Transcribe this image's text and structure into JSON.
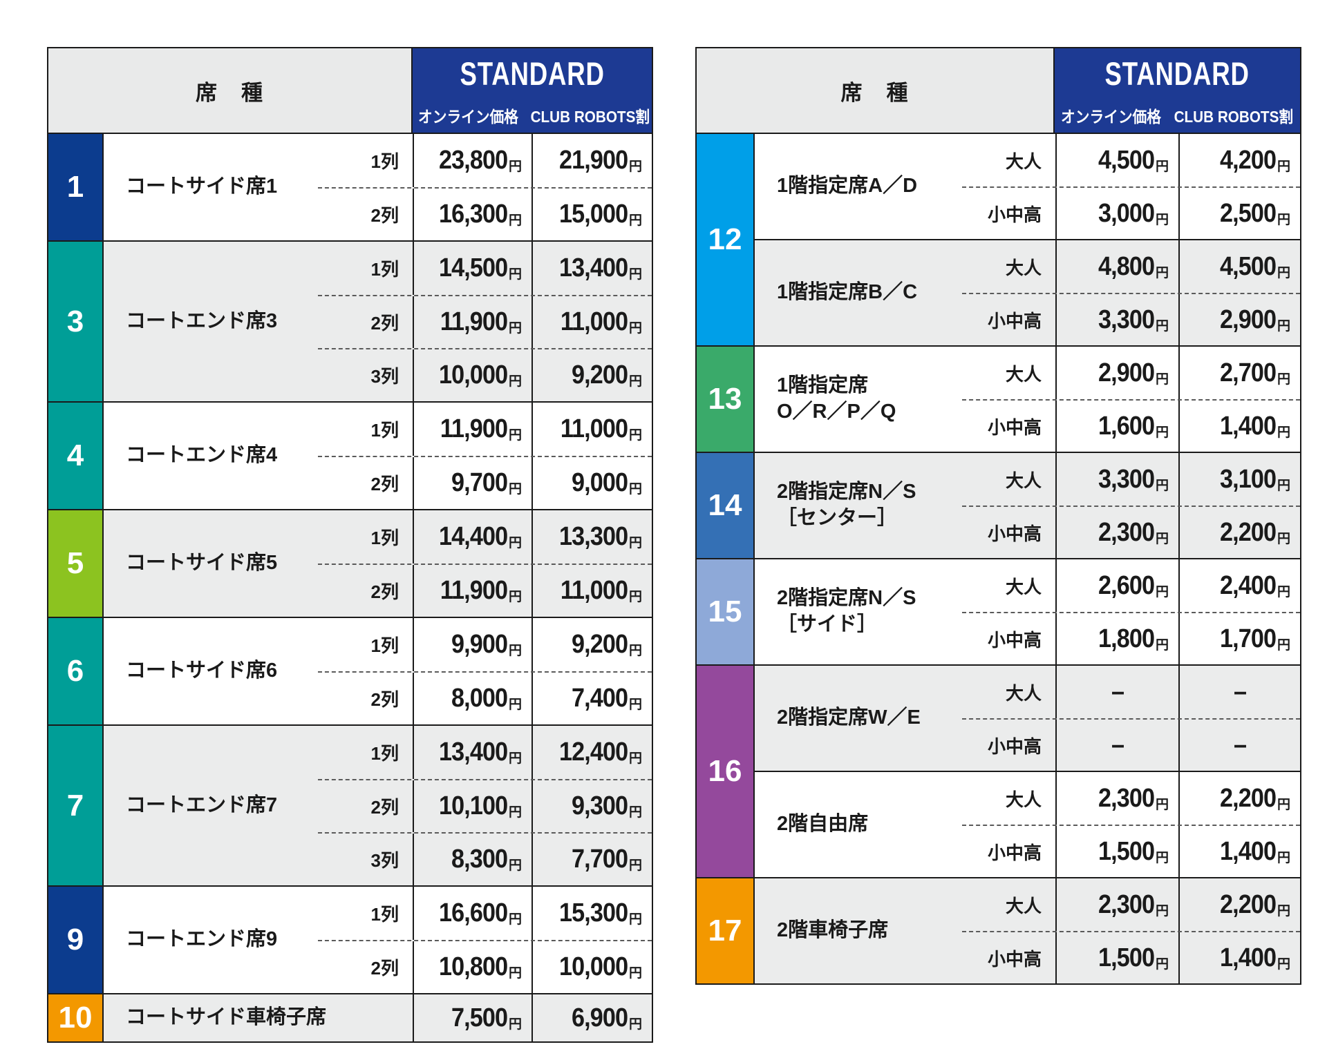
{
  "header": {
    "seat_type": "席　種",
    "plan": "STANDARD",
    "online": "オンライン価格",
    "club": "CLUB ROBOTS割",
    "bg": "#1d3a93"
  },
  "left": {
    "groups": [
      {
        "no": "1",
        "color": "#0c3c8e",
        "sections": [
          {
            "name": "コートサイド席1",
            "bg": "#ffffff",
            "rows": [
              {
                "label": "1列",
                "ov": "23,800",
                "ou": "円",
                "cv": "21,900",
                "cu": "円"
              },
              {
                "label": "2列",
                "ov": "16,300",
                "ou": "円",
                "cv": "15,000",
                "cu": "円"
              }
            ]
          }
        ]
      },
      {
        "no": "3",
        "color": "#009e97",
        "sections": [
          {
            "name": "コートエンド席3",
            "bg": "#ebecec",
            "rows": [
              {
                "label": "1列",
                "ov": "14,500",
                "ou": "円",
                "cv": "13,400",
                "cu": "円"
              },
              {
                "label": "2列",
                "ov": "11,900",
                "ou": "円",
                "cv": "11,000",
                "cu": "円"
              },
              {
                "label": "3列",
                "ov": "10,000",
                "ou": "円",
                "cv": "9,200",
                "cu": "円"
              }
            ]
          }
        ]
      },
      {
        "no": "4",
        "color": "#009e97",
        "sections": [
          {
            "name": "コートエンド席4",
            "bg": "#ffffff",
            "rows": [
              {
                "label": "1列",
                "ov": "11,900",
                "ou": "円",
                "cv": "11,000",
                "cu": "円"
              },
              {
                "label": "2列",
                "ov": "9,700",
                "ou": "円",
                "cv": "9,000",
                "cu": "円"
              }
            ]
          }
        ]
      },
      {
        "no": "5",
        "color": "#8cc320",
        "sections": [
          {
            "name": "コートサイド席5",
            "bg": "#ebecec",
            "rows": [
              {
                "label": "1列",
                "ov": "14,400",
                "ou": "円",
                "cv": "13,300",
                "cu": "円"
              },
              {
                "label": "2列",
                "ov": "11,900",
                "ou": "円",
                "cv": "11,000",
                "cu": "円"
              }
            ]
          }
        ]
      },
      {
        "no": "6",
        "color": "#009e97",
        "sections": [
          {
            "name": "コートサイド席6",
            "bg": "#ffffff",
            "rows": [
              {
                "label": "1列",
                "ov": "9,900",
                "ou": "円",
                "cv": "9,200",
                "cu": "円"
              },
              {
                "label": "2列",
                "ov": "8,000",
                "ou": "円",
                "cv": "7,400",
                "cu": "円"
              }
            ]
          }
        ]
      },
      {
        "no": "7",
        "color": "#009e97",
        "sections": [
          {
            "name": "コートエンド席7",
            "bg": "#ebecec",
            "rows": [
              {
                "label": "1列",
                "ov": "13,400",
                "ou": "円",
                "cv": "12,400",
                "cu": "円"
              },
              {
                "label": "2列",
                "ov": "10,100",
                "ou": "円",
                "cv": "9,300",
                "cu": "円"
              },
              {
                "label": "3列",
                "ov": "8,300",
                "ou": "円",
                "cv": "7,700",
                "cu": "円"
              }
            ]
          }
        ]
      },
      {
        "no": "9",
        "color": "#0c3c8e",
        "sections": [
          {
            "name": "コートエンド席9",
            "bg": "#ffffff",
            "rows": [
              {
                "label": "1列",
                "ov": "16,600",
                "ou": "円",
                "cv": "15,300",
                "cu": "円"
              },
              {
                "label": "2列",
                "ov": "10,800",
                "ou": "円",
                "cv": "10,000",
                "cu": "円"
              }
            ]
          }
        ]
      },
      {
        "no": "10",
        "color": "#f39800",
        "sections": [
          {
            "name": "コートサイド車椅子席",
            "bg": "#ebecec",
            "rows": [
              {
                "label": "",
                "ov": "7,500",
                "ou": "円",
                "cv": "6,900",
                "cu": "円"
              }
            ]
          }
        ]
      }
    ]
  },
  "right": {
    "groups": [
      {
        "no": "12",
        "color": "#009fe8",
        "sections": [
          {
            "name": "1階指定席A／D",
            "bg": "#ffffff",
            "rows": [
              {
                "label": "大人",
                "ov": "4,500",
                "ou": "円",
                "cv": "4,200",
                "cu": "円"
              },
              {
                "label": "小中高",
                "ov": "3,000",
                "ou": "円",
                "cv": "2,500",
                "cu": "円"
              }
            ]
          },
          {
            "name": "1階指定席B／C",
            "bg": "#ebecec",
            "rows": [
              {
                "label": "大人",
                "ov": "4,800",
                "ou": "円",
                "cv": "4,500",
                "cu": "円"
              },
              {
                "label": "小中高",
                "ov": "3,300",
                "ou": "円",
                "cv": "2,900",
                "cu": "円"
              }
            ]
          }
        ]
      },
      {
        "no": "13",
        "color": "#3aaa6a",
        "sections": [
          {
            "name": "1階指定席",
            "name2": "O／R／P／Q",
            "bg": "#ffffff",
            "rows": [
              {
                "label": "大人",
                "ov": "2,900",
                "ou": "円",
                "cv": "2,700",
                "cu": "円"
              },
              {
                "label": "小中高",
                "ov": "1,600",
                "ou": "円",
                "cv": "1,400",
                "cu": "円"
              }
            ]
          }
        ]
      },
      {
        "no": "14",
        "color": "#3470b5",
        "sections": [
          {
            "name": "2階指定席N／S",
            "name2": "［センター］",
            "bg": "#ebecec",
            "rows": [
              {
                "label": "大人",
                "ov": "3,300",
                "ou": "円",
                "cv": "3,100",
                "cu": "円"
              },
              {
                "label": "小中高",
                "ov": "2,300",
                "ou": "円",
                "cv": "2,200",
                "cu": "円"
              }
            ]
          }
        ]
      },
      {
        "no": "15",
        "color": "#8ea9d8",
        "sections": [
          {
            "name": "2階指定席N／S",
            "name2": "［サイド］",
            "bg": "#ffffff",
            "rows": [
              {
                "label": "大人",
                "ov": "2,600",
                "ou": "円",
                "cv": "2,400",
                "cu": "円"
              },
              {
                "label": "小中高",
                "ov": "1,800",
                "ou": "円",
                "cv": "1,700",
                "cu": "円"
              }
            ]
          }
        ]
      },
      {
        "no": "16",
        "color": "#94499c",
        "sections": [
          {
            "name": "2階指定席W／E",
            "bg": "#ebecec",
            "rows": [
              {
                "label": "大人",
                "ov": "–",
                "ou": "",
                "cv": "–",
                "cu": ""
              },
              {
                "label": "小中高",
                "ov": "–",
                "ou": "",
                "cv": "–",
                "cu": ""
              }
            ]
          },
          {
            "name": "2階自由席",
            "bg": "#ffffff",
            "rows": [
              {
                "label": "大人",
                "ov": "2,300",
                "ou": "円",
                "cv": "2,200",
                "cu": "円"
              },
              {
                "label": "小中高",
                "ov": "1,500",
                "ou": "円",
                "cv": "1,400",
                "cu": "円"
              }
            ]
          }
        ]
      },
      {
        "no": "17",
        "color": "#f39800",
        "sections": [
          {
            "name": "2階車椅子席",
            "bg": "#ebecec",
            "rows": [
              {
                "label": "大人",
                "ov": "2,300",
                "ou": "円",
                "cv": "2,200",
                "cu": "円"
              },
              {
                "label": "小中高",
                "ov": "1,500",
                "ou": "円",
                "cv": "1,400",
                "cu": "円"
              }
            ]
          }
        ]
      }
    ]
  }
}
